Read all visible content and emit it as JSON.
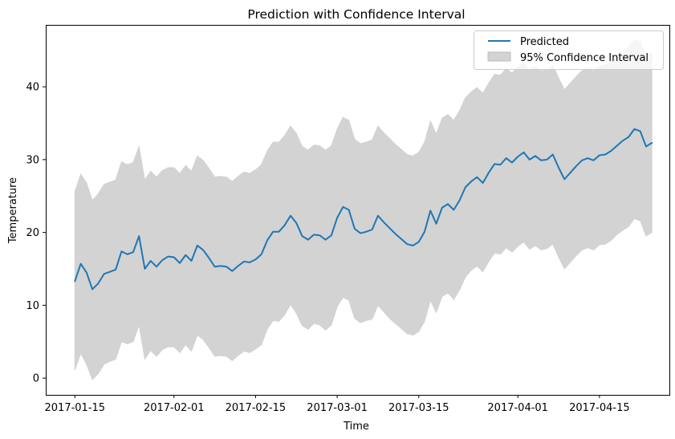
{
  "chart_data": {
    "type": "line",
    "title": "Prediction with Confidence Interval",
    "xlabel": "Time",
    "ylabel": "Temperature",
    "x_start": "2017-01-15",
    "x_end": "2017-04-23",
    "xlim": [
      "2017-01-10",
      "2017-04-27"
    ],
    "ylim": [
      -2.3,
      48.5
    ],
    "x_ticks": [
      "2017-01-15",
      "2017-02-01",
      "2017-02-15",
      "2017-03-01",
      "2017-03-15",
      "2017-04-01",
      "2017-04-15"
    ],
    "y_ticks": [
      0,
      10,
      20,
      30,
      40
    ],
    "grid": false,
    "legend_position": "top-right",
    "series": [
      {
        "name": "Predicted",
        "color": "#1f77b4",
        "values": [
          13.3,
          15.7,
          14.5,
          12.2,
          13.0,
          14.3,
          14.6,
          14.9,
          17.4,
          17.0,
          17.3,
          19.5,
          15.0,
          16.1,
          15.3,
          16.2,
          16.7,
          16.6,
          15.8,
          16.9,
          16.1,
          18.2,
          17.6,
          16.5,
          15.3,
          15.4,
          15.3,
          14.7,
          15.4,
          16.0,
          15.9,
          16.3,
          17.0,
          18.9,
          20.1,
          20.1,
          21.0,
          22.3,
          21.3,
          19.5,
          19.0,
          19.7,
          19.6,
          19.0,
          19.6,
          22.0,
          23.5,
          23.1,
          20.5,
          19.9,
          20.1,
          20.4,
          22.3,
          21.4,
          20.6,
          19.8,
          19.1,
          18.4,
          18.2,
          18.7,
          20.1,
          23.0,
          21.2,
          23.4,
          23.9,
          23.1,
          24.4,
          26.2,
          27.0,
          27.6,
          26.8,
          28.2,
          29.4,
          29.3,
          30.2,
          29.6,
          30.4,
          31.0,
          30.0,
          30.5,
          29.9,
          30.0,
          30.7,
          28.9,
          27.3,
          28.2,
          29.1,
          29.9,
          30.2,
          29.9,
          30.6,
          30.7,
          31.2,
          31.9,
          32.6,
          33.1,
          34.2,
          33.9,
          31.8,
          32.3
        ]
      }
    ],
    "confidence_interval": {
      "name": "95% Confidence Interval",
      "color": "#d3d3d3",
      "lower": [
        1.1,
        3.4,
        1.9,
        -0.2,
        0.6,
        1.9,
        2.3,
        2.6,
        5.0,
        4.7,
        5.0,
        7.3,
        2.6,
        3.8,
        3.0,
        3.9,
        4.3,
        4.3,
        3.5,
        4.6,
        3.7,
        5.9,
        5.3,
        4.2,
        3.0,
        3.1,
        3.0,
        2.4,
        3.1,
        3.7,
        3.5,
        4.0,
        4.6,
        6.7,
        7.9,
        7.8,
        8.7,
        10.1,
        8.9,
        7.2,
        6.7,
        7.5,
        7.3,
        6.6,
        7.3,
        9.8,
        11.1,
        10.7,
        8.2,
        7.6,
        7.9,
        8.1,
        10.0,
        9.1,
        8.2,
        7.5,
        6.8,
        6.1,
        5.9,
        6.4,
        7.8,
        10.7,
        9.0,
        11.2,
        11.7,
        10.8,
        12.1,
        13.9,
        14.8,
        15.4,
        14.6,
        16.0,
        17.2,
        17.0,
        17.9,
        17.3,
        18.1,
        18.7,
        17.7,
        18.2,
        17.6,
        17.8,
        18.4,
        16.6,
        15.0,
        15.9,
        16.8,
        17.6,
        17.9,
        17.6,
        18.3,
        18.4,
        18.9,
        19.7,
        20.3,
        20.8,
        21.9,
        21.6,
        19.5,
        20.0
      ],
      "upper": [
        25.6,
        28.0,
        26.8,
        24.4,
        25.3,
        26.6,
        26.9,
        27.2,
        29.7,
        29.3,
        29.6,
        31.8,
        27.2,
        28.4,
        27.6,
        28.5,
        28.9,
        28.9,
        28.1,
        29.2,
        28.4,
        30.5,
        29.9,
        28.8,
        27.6,
        27.7,
        27.6,
        27.0,
        27.7,
        28.3,
        28.1,
        28.6,
        29.3,
        31.2,
        32.4,
        32.4,
        33.3,
        34.6,
        33.6,
        31.8,
        31.3,
        32.0,
        31.9,
        31.3,
        31.9,
        34.2,
        35.8,
        35.4,
        32.8,
        32.2,
        32.4,
        32.7,
        34.6,
        33.7,
        32.9,
        32.1,
        31.4,
        30.7,
        30.5,
        31.0,
        32.4,
        35.3,
        33.5,
        35.7,
        36.2,
        35.4,
        36.7,
        38.5,
        39.3,
        39.9,
        39.1,
        40.5,
        41.7,
        41.6,
        42.5,
        41.9,
        42.7,
        43.3,
        42.3,
        42.8,
        42.2,
        42.3,
        43.0,
        41.2,
        39.6,
        40.5,
        41.4,
        42.2,
        42.5,
        42.2,
        42.9,
        43.0,
        43.5,
        44.2,
        44.9,
        45.4,
        46.5,
        46.2,
        44.1,
        44.6
      ]
    }
  }
}
